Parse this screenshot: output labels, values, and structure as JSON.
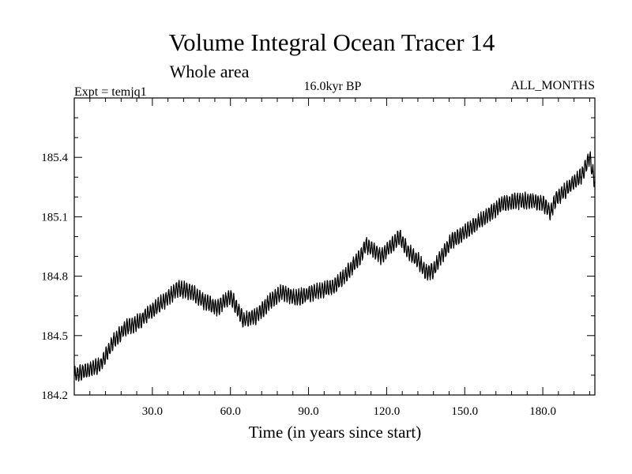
{
  "chart_data": {
    "type": "line",
    "title": "Volume Integral Ocean Tracer 14",
    "subtitle": "Whole area",
    "experiment": "Expt = temjq1",
    "period": "16.0kyr BP",
    "months": "ALL_MONTHS",
    "xlabel": "Time (in years since start)",
    "ylabel": "",
    "xlim": [
      0,
      200
    ],
    "ylim": [
      184.2,
      185.7
    ],
    "x_ticks": [
      30,
      60,
      90,
      120,
      150,
      180
    ],
    "x_tick_labels": [
      "30.0",
      "60.0",
      "90.0",
      "120.0",
      "150.0",
      "180.0"
    ],
    "y_ticks": [
      184.2,
      184.5,
      184.8,
      185.1,
      185.4
    ],
    "y_tick_labels": [
      "184.2",
      "184.5",
      "184.8",
      "185.1",
      "185.4"
    ],
    "line_color": "#000000",
    "annual_cycle_amplitude": 0.035,
    "series": [
      {
        "name": "Volume integral",
        "trend_x": [
          0,
          4,
          10,
          15,
          20,
          25,
          30,
          35,
          40,
          45,
          50,
          55,
          60,
          65,
          70,
          75,
          80,
          85,
          90,
          95,
          100,
          105,
          110,
          112,
          115,
          118,
          120,
          123,
          125,
          128,
          132,
          135,
          138,
          140,
          145,
          150,
          155,
          160,
          165,
          170,
          175,
          180,
          183,
          185,
          190,
          195,
          198,
          200
        ],
        "trend_y": [
          184.3,
          184.32,
          184.35,
          184.47,
          184.54,
          184.57,
          184.63,
          184.68,
          184.74,
          184.72,
          184.67,
          184.64,
          184.7,
          184.58,
          184.6,
          184.67,
          184.72,
          184.69,
          184.71,
          184.73,
          184.75,
          184.82,
          184.9,
          184.96,
          184.93,
          184.9,
          184.93,
          184.97,
          185.0,
          184.93,
          184.88,
          184.82,
          184.83,
          184.88,
          184.98,
          185.02,
          185.07,
          185.12,
          185.17,
          185.18,
          185.18,
          185.17,
          185.12,
          185.19,
          185.25,
          185.31,
          185.4,
          185.27
        ]
      }
    ]
  }
}
